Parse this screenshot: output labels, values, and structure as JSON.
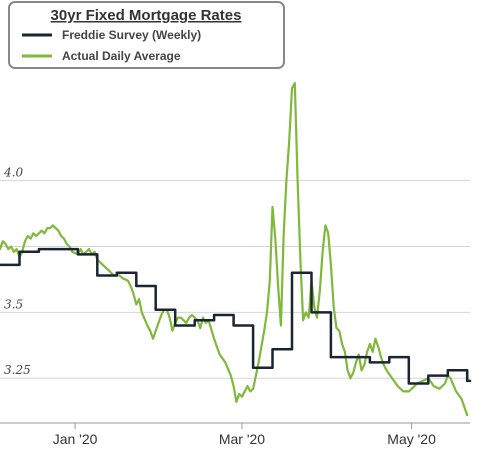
{
  "chart_data": {
    "type": "line",
    "title": "30yr Fixed Mortgage Rates",
    "xlabel": "",
    "ylabel": "",
    "x_axis": {
      "start": "2019-12-05",
      "end": "2020-05-22",
      "ticks": [
        {
          "label": "Jan '20",
          "date": "2020-01-01"
        },
        {
          "label": "Mar '20",
          "date": "2020-03-01"
        },
        {
          "label": "May '20",
          "date": "2020-05-01"
        }
      ]
    },
    "y_axis": {
      "range": [
        3.08,
        4.42
      ],
      "ticks": [
        {
          "label": "4.0",
          "value": 4.0
        },
        {
          "label": "",
          "value": 3.75
        },
        {
          "label": "3.5",
          "value": 3.5
        },
        {
          "label": "3.25",
          "value": 3.25
        }
      ]
    },
    "grid": true,
    "legend": {
      "position": "top-left"
    },
    "series": [
      {
        "name": "Freddie Survey (Weekly)",
        "color": "#1a2533",
        "step": true,
        "points": [
          [
            "2019-12-05",
            3.68
          ],
          [
            "2019-12-12",
            3.73
          ],
          [
            "2019-12-19",
            3.74
          ],
          [
            "2019-12-26",
            3.74
          ],
          [
            "2020-01-02",
            3.72
          ],
          [
            "2020-01-09",
            3.64
          ],
          [
            "2020-01-16",
            3.65
          ],
          [
            "2020-01-23",
            3.6
          ],
          [
            "2020-01-30",
            3.51
          ],
          [
            "2020-02-06",
            3.45
          ],
          [
            "2020-02-13",
            3.47
          ],
          [
            "2020-02-20",
            3.49
          ],
          [
            "2020-02-27",
            3.45
          ],
          [
            "2020-03-05",
            3.29
          ],
          [
            "2020-03-12",
            3.36
          ],
          [
            "2020-03-19",
            3.65
          ],
          [
            "2020-03-26",
            3.5
          ],
          [
            "2020-04-02",
            3.33
          ],
          [
            "2020-04-09",
            3.33
          ],
          [
            "2020-04-16",
            3.31
          ],
          [
            "2020-04-23",
            3.33
          ],
          [
            "2020-04-30",
            3.23
          ],
          [
            "2020-05-07",
            3.26
          ],
          [
            "2020-05-14",
            3.28
          ],
          [
            "2020-05-21",
            3.24
          ],
          [
            "2020-05-22",
            3.24
          ]
        ]
      },
      {
        "name": "Actual Daily Average",
        "color": "#7fb83a",
        "step": false,
        "points": [
          [
            "2019-12-05",
            3.74
          ],
          [
            "2019-12-06",
            3.77
          ],
          [
            "2019-12-07",
            3.76
          ],
          [
            "2019-12-08",
            3.74
          ],
          [
            "2019-12-09",
            3.75
          ],
          [
            "2019-12-10",
            3.73
          ],
          [
            "2019-12-11",
            3.74
          ],
          [
            "2019-12-12",
            3.71
          ],
          [
            "2019-12-13",
            3.73
          ],
          [
            "2019-12-14",
            3.77
          ],
          [
            "2019-12-15",
            3.79
          ],
          [
            "2019-12-16",
            3.78
          ],
          [
            "2019-12-17",
            3.8
          ],
          [
            "2019-12-18",
            3.79
          ],
          [
            "2019-12-19",
            3.8
          ],
          [
            "2019-12-20",
            3.81
          ],
          [
            "2019-12-21",
            3.8
          ],
          [
            "2019-12-22",
            3.82
          ],
          [
            "2019-12-23",
            3.82
          ],
          [
            "2019-12-24",
            3.83
          ],
          [
            "2019-12-25",
            3.82
          ],
          [
            "2019-12-26",
            3.81
          ],
          [
            "2019-12-27",
            3.79
          ],
          [
            "2019-12-28",
            3.78
          ],
          [
            "2019-12-29",
            3.76
          ],
          [
            "2019-12-30",
            3.75
          ],
          [
            "2019-12-31",
            3.73
          ],
          [
            "2020-01-02",
            3.72
          ],
          [
            "2020-01-03",
            3.74
          ],
          [
            "2020-01-04",
            3.72
          ],
          [
            "2020-01-05",
            3.73
          ],
          [
            "2020-01-06",
            3.74
          ],
          [
            "2020-01-07",
            3.72
          ],
          [
            "2020-01-08",
            3.73
          ],
          [
            "2020-01-09",
            3.7
          ],
          [
            "2020-01-11",
            3.68
          ],
          [
            "2020-01-13",
            3.66
          ],
          [
            "2020-01-15",
            3.64
          ],
          [
            "2020-01-17",
            3.64
          ],
          [
            "2020-01-18",
            3.63
          ],
          [
            "2020-01-20",
            3.62
          ],
          [
            "2020-01-21",
            3.6
          ],
          [
            "2020-01-22",
            3.57
          ],
          [
            "2020-01-23",
            3.53
          ],
          [
            "2020-01-24",
            3.55
          ],
          [
            "2020-01-25",
            3.5
          ],
          [
            "2020-01-27",
            3.45
          ],
          [
            "2020-01-28",
            3.43
          ],
          [
            "2020-01-29",
            3.4
          ],
          [
            "2020-01-31",
            3.46
          ],
          [
            "2020-02-01",
            3.49
          ],
          [
            "2020-02-02",
            3.51
          ],
          [
            "2020-02-03",
            3.51
          ],
          [
            "2020-02-04",
            3.48
          ],
          [
            "2020-02-05",
            3.43
          ],
          [
            "2020-02-06",
            3.46
          ],
          [
            "2020-02-07",
            3.48
          ],
          [
            "2020-02-08",
            3.48
          ],
          [
            "2020-02-09",
            3.47
          ],
          [
            "2020-02-10",
            3.46
          ],
          [
            "2020-02-11",
            3.48
          ],
          [
            "2020-02-12",
            3.49
          ],
          [
            "2020-02-13",
            3.48
          ],
          [
            "2020-02-14",
            3.47
          ],
          [
            "2020-02-15",
            3.44
          ],
          [
            "2020-02-16",
            3.48
          ],
          [
            "2020-02-17",
            3.46
          ],
          [
            "2020-02-18",
            3.47
          ],
          [
            "2020-02-20",
            3.4
          ],
          [
            "2020-02-22",
            3.34
          ],
          [
            "2020-02-24",
            3.31
          ],
          [
            "2020-02-26",
            3.26
          ],
          [
            "2020-02-27",
            3.22
          ],
          [
            "2020-02-28",
            3.16
          ],
          [
            "2020-02-29",
            3.19
          ],
          [
            "2020-03-01",
            3.18
          ],
          [
            "2020-03-02",
            3.2
          ],
          [
            "2020-03-03",
            3.22
          ],
          [
            "2020-03-04",
            3.2
          ],
          [
            "2020-03-05",
            3.21
          ],
          [
            "2020-03-06",
            3.26
          ],
          [
            "2020-03-07",
            3.31
          ],
          [
            "2020-03-08",
            3.37
          ],
          [
            "2020-03-09",
            3.43
          ],
          [
            "2020-03-10",
            3.5
          ],
          [
            "2020-03-11",
            3.62
          ],
          [
            "2020-03-12",
            3.9
          ],
          [
            "2020-03-13",
            3.78
          ],
          [
            "2020-03-14",
            3.6
          ],
          [
            "2020-03-15",
            3.45
          ],
          [
            "2020-03-16",
            3.8
          ],
          [
            "2020-03-17",
            4.0
          ],
          [
            "2020-03-18",
            4.15
          ],
          [
            "2020-03-19",
            4.35
          ],
          [
            "2020-03-20",
            4.37
          ],
          [
            "2020-03-21",
            4.0
          ],
          [
            "2020-03-22",
            3.7
          ],
          [
            "2020-03-23",
            3.47
          ],
          [
            "2020-03-24",
            3.5
          ],
          [
            "2020-03-25",
            3.48
          ],
          [
            "2020-03-26",
            3.62
          ],
          [
            "2020-03-27",
            3.52
          ],
          [
            "2020-03-28",
            3.48
          ],
          [
            "2020-03-29",
            3.58
          ],
          [
            "2020-03-30",
            3.73
          ],
          [
            "2020-03-31",
            3.83
          ],
          [
            "2020-04-01",
            3.8
          ],
          [
            "2020-04-02",
            3.68
          ],
          [
            "2020-04-03",
            3.52
          ],
          [
            "2020-04-04",
            3.44
          ],
          [
            "2020-04-05",
            3.43
          ],
          [
            "2020-04-06",
            3.38
          ],
          [
            "2020-04-07",
            3.35
          ],
          [
            "2020-04-08",
            3.28
          ],
          [
            "2020-04-09",
            3.25
          ],
          [
            "2020-04-10",
            3.27
          ],
          [
            "2020-04-11",
            3.31
          ],
          [
            "2020-04-12",
            3.34
          ],
          [
            "2020-04-13",
            3.28
          ],
          [
            "2020-04-14",
            3.3
          ],
          [
            "2020-04-15",
            3.35
          ],
          [
            "2020-04-16",
            3.38
          ],
          [
            "2020-04-17",
            3.35
          ],
          [
            "2020-04-18",
            3.4
          ],
          [
            "2020-04-19",
            3.37
          ],
          [
            "2020-04-20",
            3.33
          ],
          [
            "2020-04-21",
            3.3
          ],
          [
            "2020-04-22",
            3.28
          ],
          [
            "2020-04-24",
            3.25
          ],
          [
            "2020-04-26",
            3.22
          ],
          [
            "2020-04-28",
            3.2
          ],
          [
            "2020-04-30",
            3.2
          ],
          [
            "2020-05-01",
            3.21
          ],
          [
            "2020-05-03",
            3.23
          ],
          [
            "2020-05-05",
            3.24
          ],
          [
            "2020-05-07",
            3.25
          ],
          [
            "2020-05-09",
            3.22
          ],
          [
            "2020-05-11",
            3.21
          ],
          [
            "2020-05-13",
            3.23
          ],
          [
            "2020-05-14",
            3.26
          ],
          [
            "2020-05-15",
            3.25
          ],
          [
            "2020-05-17",
            3.2
          ],
          [
            "2020-05-19",
            3.17
          ],
          [
            "2020-05-20",
            3.14
          ],
          [
            "2020-05-21",
            3.11
          ]
        ]
      }
    ]
  }
}
